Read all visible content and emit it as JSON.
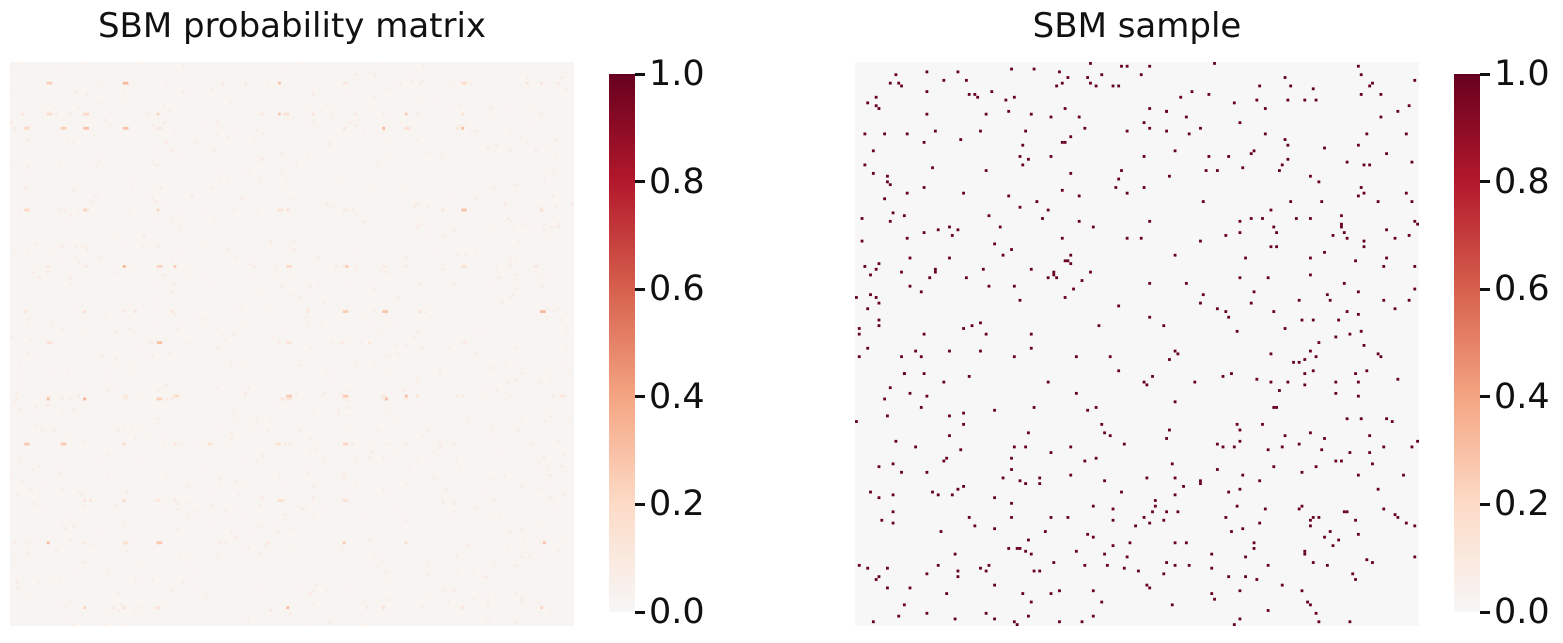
{
  "colormap": [
    "#f7f7f7",
    "#fddbc7",
    "#f4a582",
    "#d6604d",
    "#b2182b",
    "#67001f"
  ],
  "colorbar_ticks": [
    "0.0",
    "0.2",
    "0.4",
    "0.6",
    "0.8",
    "1.0"
  ],
  "chart_data": [
    {
      "type": "heatmap",
      "title": "SBM probability matrix",
      "matrix_size": 200,
      "vmin": 0.0,
      "vmax": 1.0,
      "background_value": 0.02,
      "block_rows": [
        7,
        18,
        23,
        52,
        72,
        88,
        99,
        118,
        119,
        135,
        155,
        170,
        193
      ],
      "block_cols": [
        5,
        13,
        18,
        26,
        40,
        52,
        58,
        95,
        98,
        118,
        132,
        140,
        160,
        188
      ],
      "value_range_highlighted": [
        0.05,
        0.35
      ],
      "colorbar_ticks": [
        0.0,
        0.2,
        0.4,
        0.6,
        0.8,
        1.0
      ],
      "grid": false
    },
    {
      "type": "heatmap",
      "title": "SBM sample",
      "matrix_size": 200,
      "vmin": 0.0,
      "vmax": 1.0,
      "values": "binary adjacency (0 or 1), sparse, symmetric",
      "edge_density": 0.015,
      "colorbar_ticks": [
        0.0,
        0.2,
        0.4,
        0.6,
        0.8,
        1.0
      ],
      "grid": false
    }
  ]
}
